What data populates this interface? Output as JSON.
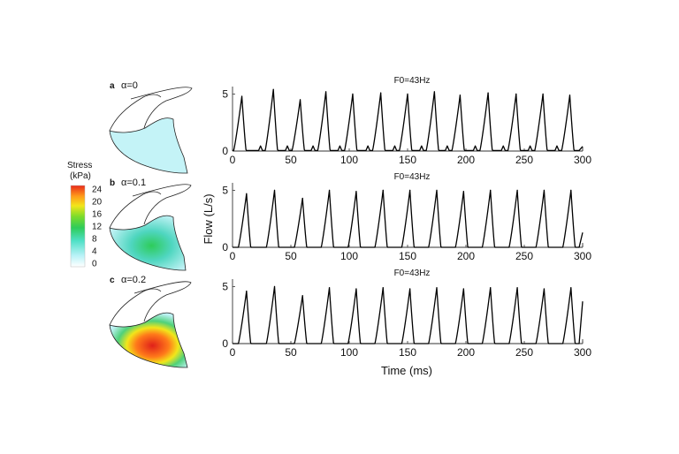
{
  "colorbar": {
    "title_line1": "Stress",
    "title_line2": "(kPa)",
    "ticks": [
      "24",
      "20",
      "16",
      "12",
      "8",
      "4",
      "0"
    ],
    "stops": [
      "#ffffff",
      "#b7f2f7",
      "#4fe0c6",
      "#2ecc5a",
      "#7ddc2a",
      "#f2e61a",
      "#ff9a1a",
      "#e82a1a"
    ]
  },
  "panels": [
    {
      "letter": "a",
      "alpha_label": "α=0",
      "stress_level": "low"
    },
    {
      "letter": "b",
      "alpha_label": "α=0.1",
      "stress_level": "medium"
    },
    {
      "letter": "c",
      "alpha_label": "α=0.2",
      "stress_level": "high"
    }
  ],
  "axes": {
    "ylabel": "Flow (L/s)",
    "xlabel": "Time (ms)",
    "xticks": [
      "0",
      "50",
      "100",
      "150",
      "200",
      "250",
      "300"
    ],
    "yticks": [
      "0",
      "5"
    ]
  },
  "chart_data": [
    {
      "type": "line",
      "title": "F0=43Hz",
      "xlim": [
        0,
        300
      ],
      "ylim": [
        0,
        5.5
      ],
      "xlabel": "",
      "ylabel": "",
      "baseline": 0.05,
      "peaks_x": [
        8,
        35,
        58,
        80,
        103,
        127,
        150,
        173,
        195,
        219,
        243,
        266,
        289
      ],
      "peaks_y": [
        4.8,
        5.4,
        4.5,
        5.2,
        5.0,
        5.1,
        5.0,
        5.2,
        4.9,
        5.1,
        5.0,
        5.0,
        4.9
      ],
      "dip_depth": 0.4,
      "end_value": 0.4
    },
    {
      "type": "line",
      "title": "F0=43Hz",
      "xlim": [
        0,
        300
      ],
      "ylim": [
        0,
        5.5
      ],
      "xlabel": "",
      "ylabel": "Flow (L/s)",
      "baseline": 0.0,
      "peaks_x": [
        12,
        36,
        60,
        83,
        106,
        129,
        152,
        175,
        198,
        221,
        244,
        267,
        290
      ],
      "peaks_y": [
        4.7,
        5.0,
        4.3,
        5.0,
        4.9,
        5.0,
        5.0,
        5.0,
        4.9,
        5.0,
        5.0,
        5.0,
        5.0
      ],
      "dip_depth": 0.0,
      "end_value": 1.3
    },
    {
      "type": "line",
      "title": "F0=43Hz",
      "xlim": [
        0,
        300
      ],
      "ylim": [
        0,
        5.5
      ],
      "xlabel": "Time (ms)",
      "ylabel": "",
      "baseline": 0.0,
      "peaks_x": [
        12,
        36,
        60,
        83,
        106,
        129,
        152,
        175,
        198,
        221,
        244,
        267,
        290
      ],
      "peaks_y": [
        4.6,
        5.0,
        4.2,
        4.9,
        4.8,
        4.9,
        4.8,
        4.9,
        4.8,
        4.9,
        4.9,
        4.8,
        4.9
      ],
      "dip_depth": 0.0,
      "end_value": 3.7
    }
  ]
}
